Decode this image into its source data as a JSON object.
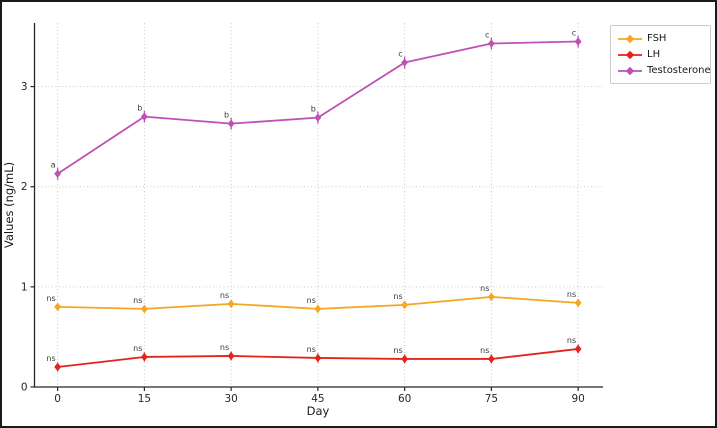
{
  "figure": {
    "background_color": "#ffffff",
    "border_color": "#1a1a1a"
  },
  "axes": {
    "spine_color": "#262626",
    "grid_color": "#c9c9c9",
    "tick_label_color": "#262626",
    "annotation_color": "#3a3a3a"
  },
  "chart_data": {
    "type": "line",
    "title": "",
    "xlabel": "Day",
    "ylabel": "Values (ng/mL)",
    "x": [
      0,
      15,
      30,
      45,
      60,
      75,
      90
    ],
    "x_tick_labels": [
      "0",
      "15",
      "30",
      "45",
      "60",
      "75",
      "90"
    ],
    "y_ticks": [
      0,
      1,
      2,
      3
    ],
    "y_tick_labels": [
      "0",
      "1",
      "2",
      "3"
    ],
    "xlim": [
      -4,
      94.3
    ],
    "ylim": [
      0,
      3.635
    ],
    "grid": true,
    "grid_style": "dotted",
    "legend_position": "upper right, outside plot area",
    "marker": "diamond",
    "error_bars": true,
    "series": [
      {
        "name": "FSH",
        "color": "#F5A623",
        "values": [
          0.8,
          0.78,
          0.83,
          0.78,
          0.82,
          0.9,
          0.84
        ],
        "error": 0.04,
        "annotations": [
          "ns",
          "ns",
          "ns",
          "ns",
          "ns",
          "ns",
          "ns"
        ]
      },
      {
        "name": "LH",
        "color": "#E3231C",
        "values": [
          0.2,
          0.3,
          0.31,
          0.29,
          0.28,
          0.28,
          0.38
        ],
        "error": 0.045,
        "annotations": [
          "ns",
          "ns",
          "ns",
          "ns",
          "ns",
          "ns",
          "ns"
        ]
      },
      {
        "name": "Testosterone",
        "color": "#BE51B5",
        "values": [
          2.13,
          2.7,
          2.63,
          2.69,
          3.24,
          3.43,
          3.45
        ],
        "error": 0.06,
        "annotations": [
          "a",
          "b",
          "b",
          "b",
          "c",
          "c",
          "c"
        ]
      }
    ]
  }
}
